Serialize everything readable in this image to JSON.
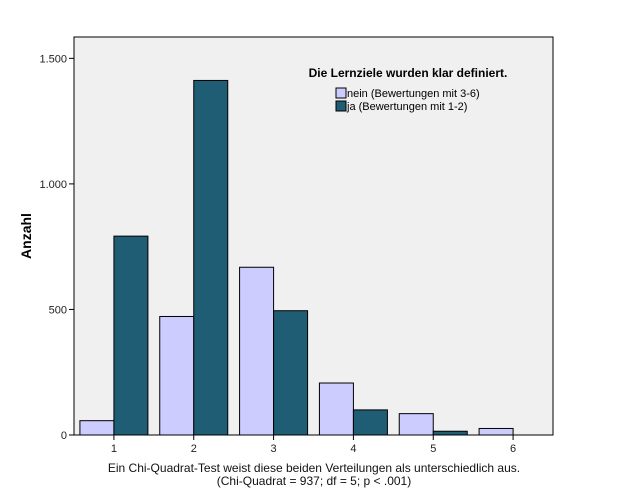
{
  "chart_data": {
    "type": "bar",
    "title": "Die Lernziele wurden klar definiert.",
    "xlabel": "",
    "ylabel": "Anzahl",
    "categories": [
      "1",
      "2",
      "3",
      "4",
      "5",
      "6"
    ],
    "y_tick_labels": [
      "0",
      "500",
      "1.000",
      "1.500"
    ],
    "y_ticks": [
      0,
      500,
      1000,
      1500
    ],
    "ylim": [
      0,
      1585
    ],
    "grid": false,
    "legend_position": "top-right",
    "series": [
      {
        "name": "nein (Bewertungen mit 3-6)",
        "color": "#ccccff",
        "values": [
          57,
          472,
          668,
          207,
          85,
          26
        ]
      },
      {
        "name": "ja (Bewertungen mit 1-2)",
        "color": "#1f5d75",
        "values": [
          792,
          1412,
          495,
          100,
          15,
          0
        ]
      }
    ]
  },
  "caption": {
    "line1": "Ein Chi-Quadrat-Test weist diese beiden Verteilungen als unterschiedlich aus.",
    "line2": "(Chi-Quadrat = 937; df = 5; p < .001)"
  },
  "colors": {
    "plot_background": "#f0f0f0",
    "bar_outline": "#000000"
  }
}
